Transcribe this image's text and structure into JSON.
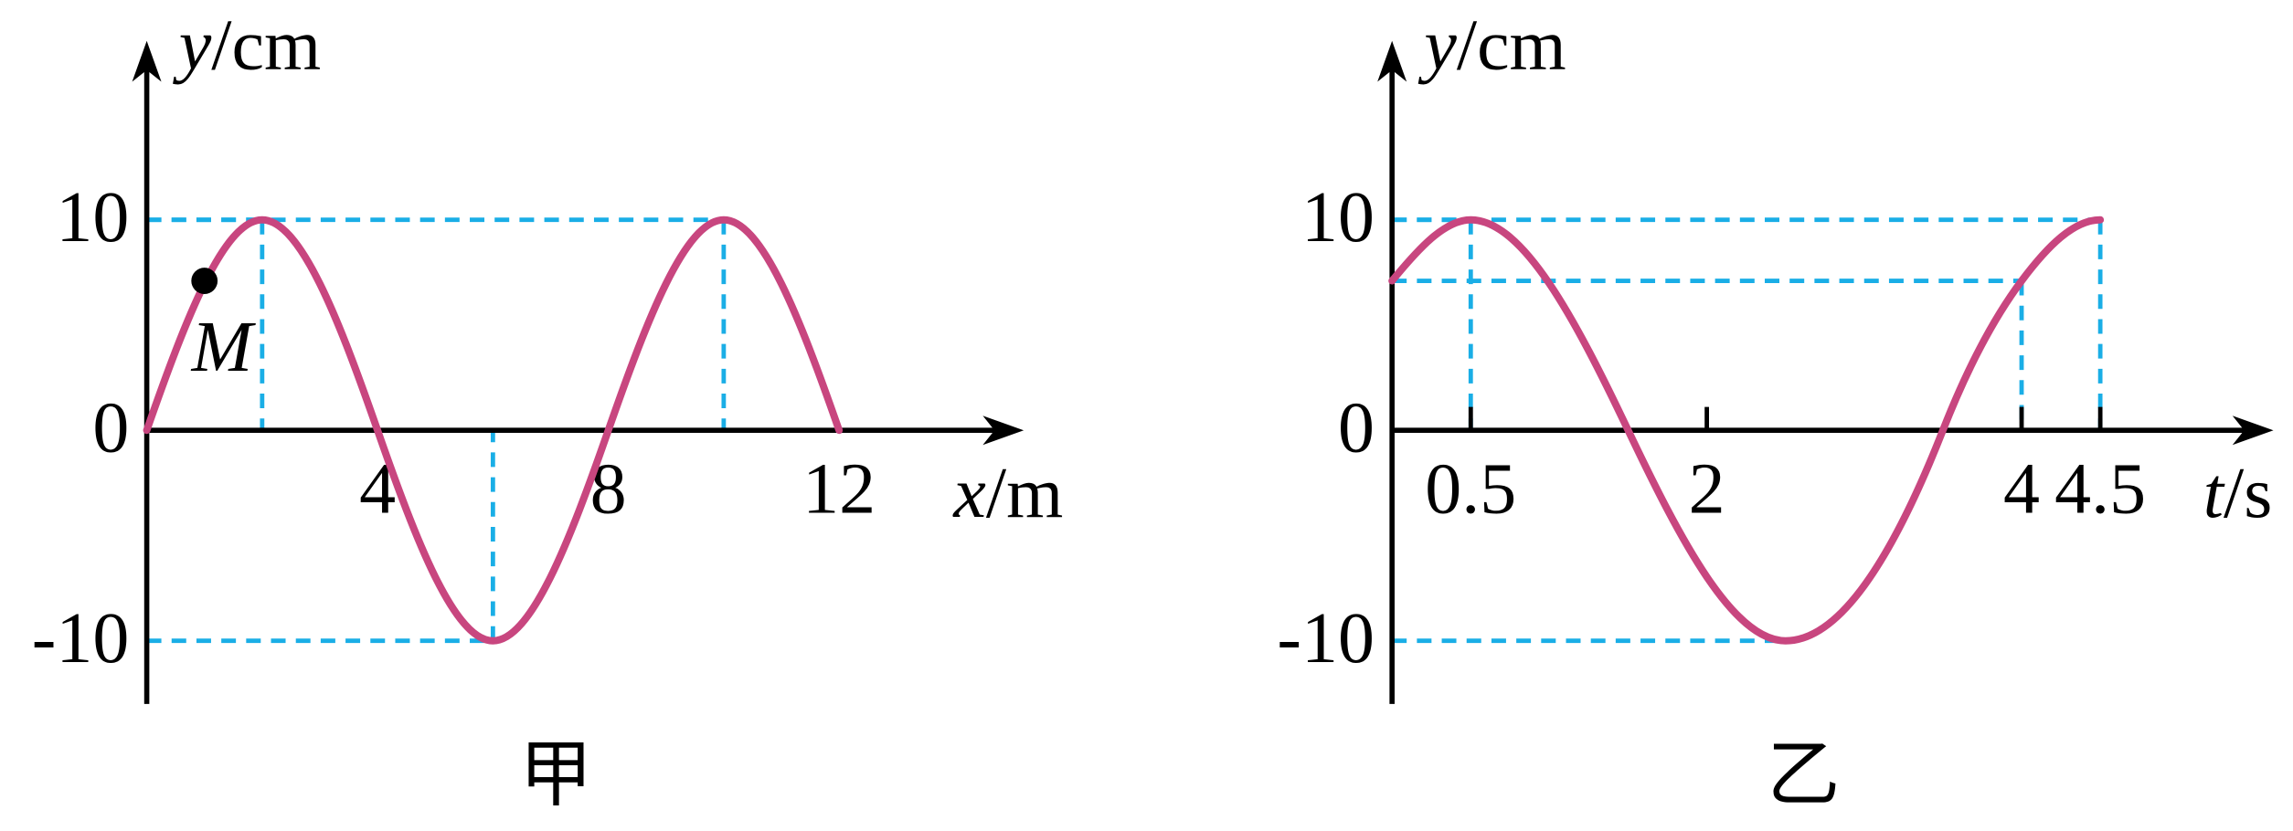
{
  "chart_data": [
    {
      "type": "line",
      "caption": "甲",
      "xlabel": {
        "symbol": "x",
        "unit": "/m"
      },
      "ylabel": {
        "symbol": "y",
        "unit": "/cm"
      },
      "x": [
        0,
        2,
        4,
        6,
        8,
        10,
        12
      ],
      "series": [
        {
          "color": "#c8467f",
          "values": [
            0,
            10,
            0,
            -10,
            0,
            10,
            0
          ]
        }
      ],
      "xlim": [
        0,
        15.2
      ],
      "ylim": [
        -13,
        18.5
      ],
      "xticks": [
        4,
        8,
        12
      ],
      "yticks": [
        10,
        0,
        -10
      ],
      "tick_marks": false,
      "point": {
        "label": "M",
        "x": 1,
        "y": 7.1
      },
      "guide_color": "#1aaee6",
      "guides": [
        {
          "x": 2,
          "y": 10,
          "drop": true
        },
        {
          "x": 6,
          "y": -10,
          "drop": true
        },
        {
          "x": 10,
          "y": 10,
          "drop": true
        }
      ]
    },
    {
      "type": "line",
      "caption": "乙",
      "xlabel": {
        "symbol": "t",
        "unit": "/s"
      },
      "ylabel": {
        "symbol": "y",
        "unit": "/cm"
      },
      "x": [
        0,
        0.5,
        1.5,
        2.5,
        3.5,
        4,
        4.5
      ],
      "series": [
        {
          "color": "#c8467f",
          "values": [
            7.1,
            10,
            0,
            -10,
            0,
            7.1,
            10
          ]
        }
      ],
      "xlim": [
        0,
        5.6
      ],
      "ylim": [
        -13,
        18.5
      ],
      "xticks": [
        0.5,
        2,
        4,
        4.5
      ],
      "yticks": [
        10,
        0,
        -10
      ],
      "tick_marks": true,
      "guide_color": "#1aaee6",
      "guides": [
        {
          "x": 0.5,
          "y": 10,
          "drop": true
        },
        {
          "x": 2.5,
          "y": -10,
          "drop": false
        },
        {
          "x": 4,
          "y": 7.1,
          "drop": true
        },
        {
          "x": 4.5,
          "y": 10,
          "drop": true
        }
      ]
    }
  ]
}
